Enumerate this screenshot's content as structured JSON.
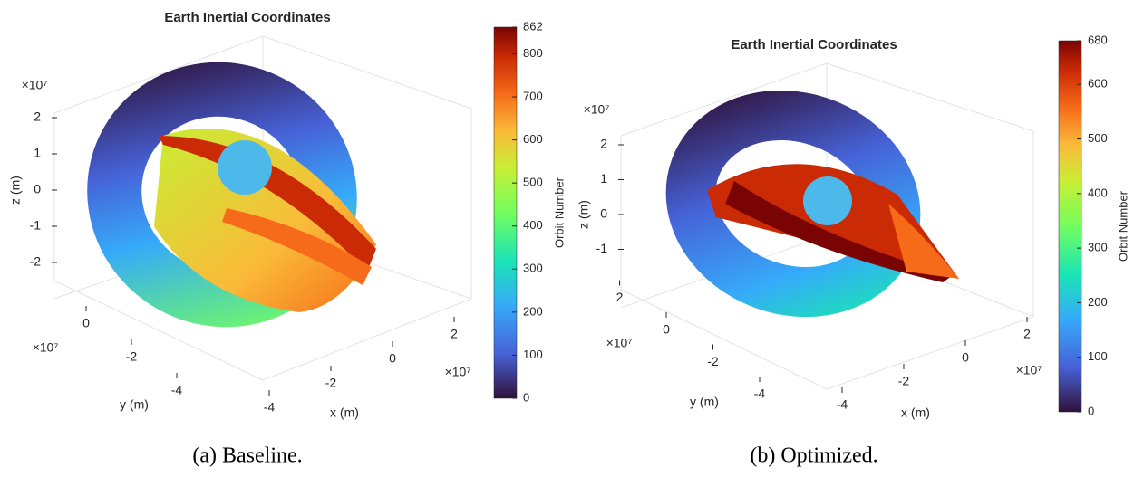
{
  "chart_data": [
    {
      "type": "surface3d",
      "title": "Earth Inertial Coordinates",
      "caption": "(a) Baseline.",
      "xlabel": "x (m)",
      "ylabel": "y (m)",
      "zlabel": "z (m)",
      "exponent": "×10⁷",
      "xticks": [
        -4,
        -2,
        0,
        2
      ],
      "yticks": [
        -4,
        -2,
        0
      ],
      "zticks": [
        -2,
        -1,
        0,
        1,
        2
      ],
      "colorbar_label": "Orbit Number",
      "clim": [
        0,
        862
      ],
      "cticks": [
        0,
        100,
        200,
        300,
        400,
        500,
        600,
        700,
        800,
        862
      ],
      "colormap": "turbo"
    },
    {
      "type": "surface3d",
      "title": "Earth Inertial Coordinates",
      "caption": "(b) Optimized.",
      "xlabel": "x (m)",
      "ylabel": "y (m)",
      "zlabel": "z (m)",
      "exponent": "×10⁷",
      "xticks": [
        -4,
        -2,
        0,
        2
      ],
      "yticks": [
        -4,
        -2,
        0,
        2
      ],
      "zticks": [
        -1,
        0,
        1,
        2
      ],
      "colorbar_label": "Orbit Number",
      "clim": [
        0,
        680
      ],
      "cticks": [
        0,
        100,
        200,
        300,
        400,
        500,
        600,
        680
      ],
      "colormap": "turbo"
    }
  ]
}
